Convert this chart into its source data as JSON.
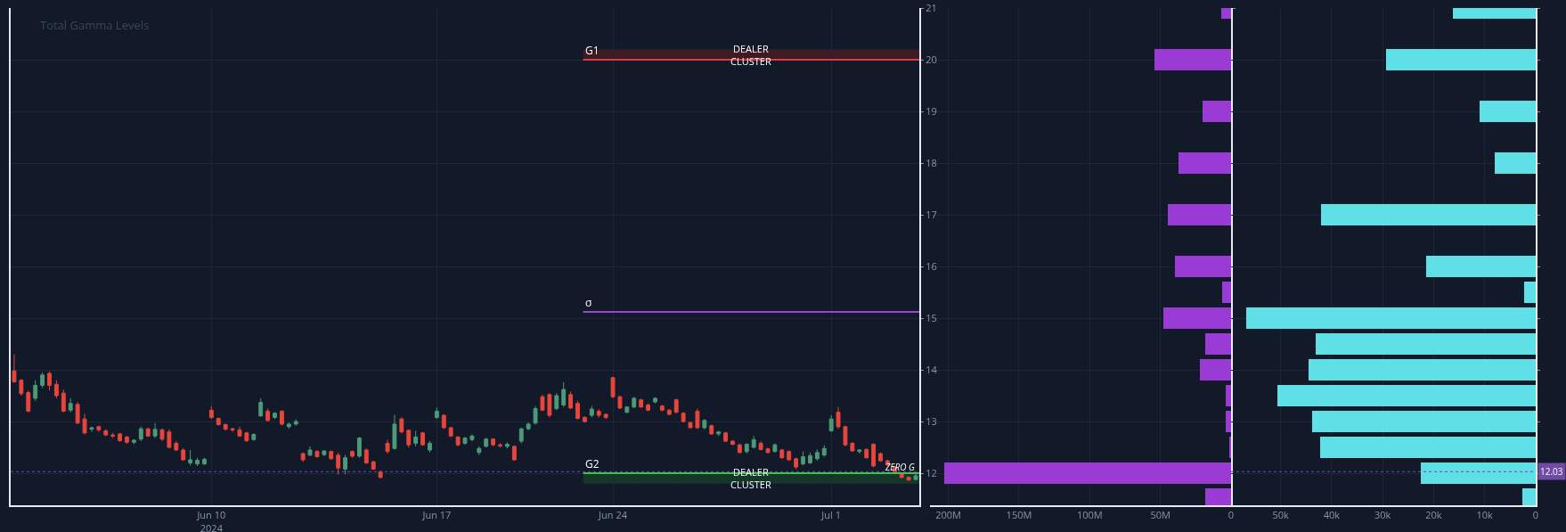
{
  "chart_data": [
    {
      "type": "candlestick",
      "title": "Total Gamma Levels",
      "categories": [
        null,
        null,
        null,
        null,
        null,
        null,
        null,
        null,
        null,
        null,
        null,
        null,
        null,
        null,
        null,
        null,
        null,
        null,
        null,
        null,
        null,
        null,
        null,
        null,
        null,
        null,
        null,
        null,
        "Jun 10\n2024",
        null,
        null,
        null,
        null,
        null,
        null,
        null,
        null,
        null,
        null,
        null,
        null,
        null,
        null,
        null,
        null,
        null,
        null,
        null,
        null,
        null,
        null,
        null,
        null,
        null,
        null,
        null,
        null,
        null,
        null,
        null,
        "Jun 17",
        null,
        null,
        null,
        null,
        null,
        null,
        null,
        null,
        null,
        null,
        null,
        null,
        null,
        null,
        null,
        null,
        null,
        null,
        null,
        null,
        null,
        null,
        null,
        null,
        "Jun 24",
        null,
        null,
        null,
        null,
        null,
        null,
        null,
        null,
        null,
        null,
        null,
        null,
        null,
        null,
        null,
        null,
        null,
        null,
        null,
        null,
        null,
        null,
        null,
        null,
        null,
        null,
        null,
        null,
        null,
        null,
        "Jul 1",
        null,
        null,
        null,
        null,
        null,
        null,
        null,
        null,
        null,
        null,
        null,
        null
      ],
      "ohlc": [
        [
          13.98,
          14.3,
          13.75,
          13.77
        ],
        [
          13.8,
          13.82,
          13.5,
          13.54
        ],
        [
          13.56,
          13.6,
          13.18,
          13.2
        ],
        [
          13.45,
          13.8,
          13.4,
          13.7
        ],
        [
          13.7,
          13.95,
          13.65,
          13.9
        ],
        [
          13.93,
          13.97,
          13.6,
          13.7
        ],
        [
          13.72,
          13.8,
          13.45,
          13.5
        ],
        [
          13.55,
          13.62,
          13.18,
          13.2
        ],
        [
          13.22,
          13.45,
          13.18,
          13.35
        ],
        [
          13.33,
          13.38,
          12.95,
          12.97
        ],
        [
          13.05,
          13.15,
          12.75,
          12.78
        ],
        [
          12.85,
          12.9,
          12.8,
          12.88
        ],
        [
          12.9,
          12.92,
          12.8,
          12.84
        ],
        [
          12.82,
          12.85,
          12.72,
          12.74
        ],
        [
          12.74,
          12.78,
          12.68,
          12.72
        ],
        [
          12.76,
          12.78,
          12.6,
          12.63
        ],
        [
          12.7,
          12.72,
          12.57,
          12.6
        ],
        [
          12.6,
          12.66,
          12.56,
          12.64
        ],
        [
          12.66,
          12.9,
          12.62,
          12.86
        ],
        [
          12.86,
          12.88,
          12.7,
          12.72
        ],
        [
          12.72,
          12.97,
          12.68,
          12.85
        ],
        [
          12.84,
          12.86,
          12.62,
          12.66
        ],
        [
          12.8,
          12.85,
          12.48,
          12.5
        ],
        [
          12.58,
          12.62,
          12.43,
          12.45
        ],
        [
          12.45,
          12.48,
          12.24,
          12.26
        ],
        [
          12.2,
          12.45,
          12.15,
          12.26
        ],
        [
          12.18,
          12.3,
          12.14,
          12.25
        ],
        [
          12.18,
          12.3,
          12.16,
          12.27
        ],
        [
          13.22,
          13.3,
          13.05,
          13.08
        ],
        [
          13.06,
          13.08,
          12.92,
          12.94
        ],
        [
          12.94,
          12.96,
          12.83,
          12.85
        ],
        [
          12.86,
          12.88,
          12.8,
          12.84
        ],
        [
          12.84,
          12.9,
          12.7,
          12.72
        ],
        [
          12.78,
          12.8,
          12.6,
          12.63
        ],
        [
          12.65,
          12.77,
          12.63,
          12.75
        ],
        [
          13.11,
          13.45,
          13.09,
          13.37
        ],
        [
          13.2,
          13.25,
          13.0,
          13.02
        ],
        [
          13.08,
          13.18,
          13.05,
          13.16
        ],
        [
          13.2,
          13.22,
          12.92,
          12.95
        ],
        [
          12.9,
          12.98,
          12.86,
          12.95
        ],
        [
          12.95,
          13.04,
          12.92,
          13.0
        ],
        [
          12.38,
          12.4,
          12.22,
          12.26
        ],
        [
          12.35,
          12.52,
          12.33,
          12.45
        ],
        [
          12.42,
          12.45,
          12.3,
          12.32
        ],
        [
          12.36,
          12.45,
          12.33,
          12.43
        ],
        [
          12.42,
          12.44,
          12.26,
          12.28
        ],
        [
          12.35,
          12.4,
          11.97,
          12.1
        ],
        [
          12.08,
          12.35,
          11.98,
          12.3
        ],
        [
          12.42,
          12.44,
          12.3,
          12.33
        ],
        [
          12.33,
          12.7,
          12.3,
          12.68
        ],
        [
          12.45,
          12.48,
          12.18,
          12.2
        ],
        [
          12.22,
          12.24,
          12.06,
          12.08
        ],
        [
          12.03,
          12.05,
          11.9,
          11.92
        ],
        [
          12.58,
          12.65,
          12.38,
          12.42
        ],
        [
          12.48,
          13.13,
          12.46,
          12.95
        ],
        [
          13.05,
          13.08,
          12.77,
          12.8
        ],
        [
          12.83,
          12.85,
          12.5,
          12.55
        ],
        [
          12.58,
          12.82,
          12.52,
          12.7
        ],
        [
          12.78,
          12.8,
          12.53,
          12.55
        ],
        [
          12.45,
          12.62,
          12.4,
          12.58
        ],
        [
          13.08,
          13.27,
          13.05,
          13.2
        ],
        [
          13.12,
          13.14,
          12.86,
          12.88
        ],
        [
          12.88,
          12.9,
          12.7,
          12.72
        ],
        [
          12.7,
          12.72,
          12.52,
          12.55
        ],
        [
          12.58,
          12.7,
          12.55,
          12.68
        ],
        [
          12.65,
          12.75,
          12.62,
          12.72
        ],
        [
          12.4,
          12.52,
          12.35,
          12.48
        ],
        [
          12.52,
          12.68,
          12.5,
          12.66
        ],
        [
          12.66,
          12.68,
          12.52,
          12.55
        ],
        [
          12.55,
          12.58,
          12.5,
          12.53
        ],
        [
          12.52,
          12.6,
          12.48,
          12.56
        ],
        [
          12.52,
          12.54,
          12.24,
          12.26
        ],
        [
          12.62,
          12.88,
          12.58,
          12.86
        ],
        [
          12.86,
          12.98,
          12.83,
          12.95
        ],
        [
          12.97,
          13.3,
          12.94,
          13.25
        ],
        [
          13.48,
          13.52,
          13.2,
          13.22
        ],
        [
          13.52,
          13.55,
          13.08,
          13.12
        ],
        [
          13.25,
          13.55,
          13.22,
          13.5
        ],
        [
          13.32,
          13.76,
          13.28,
          13.62
        ],
        [
          13.52,
          13.58,
          13.25,
          13.26
        ],
        [
          13.35,
          13.4,
          13.04,
          13.06
        ],
        [
          13.08,
          13.1,
          12.98,
          13.0
        ],
        [
          13.12,
          13.3,
          13.08,
          13.24
        ],
        [
          13.2,
          13.24,
          13.08,
          13.12
        ],
        [
          13.14,
          13.16,
          13.05,
          13.08
        ],
        [
          13.85,
          13.86,
          13.45,
          13.48
        ],
        [
          13.48,
          13.5,
          13.24,
          13.26
        ],
        [
          13.18,
          13.3,
          13.15,
          13.28
        ],
        [
          13.28,
          13.48,
          13.26,
          13.45
        ],
        [
          13.42,
          13.44,
          13.27,
          13.28
        ],
        [
          13.32,
          13.35,
          13.2,
          13.22
        ],
        [
          13.38,
          13.47,
          13.35,
          13.45
        ],
        [
          13.3,
          13.32,
          13.2,
          13.22
        ],
        [
          13.22,
          13.24,
          13.12,
          13.14
        ],
        [
          13.42,
          13.44,
          13.16,
          13.18
        ],
        [
          13.16,
          13.18,
          12.98,
          13.0
        ],
        [
          12.98,
          13.0,
          12.87,
          12.88
        ],
        [
          13.2,
          13.25,
          12.86,
          12.88
        ],
        [
          12.88,
          13.05,
          12.85,
          13.02
        ],
        [
          12.92,
          12.94,
          12.74,
          12.76
        ],
        [
          12.76,
          12.82,
          12.72,
          12.8
        ],
        [
          12.78,
          12.8,
          12.6,
          12.62
        ],
        [
          12.62,
          12.64,
          12.54,
          12.56
        ],
        [
          12.55,
          12.57,
          12.38,
          12.4
        ],
        [
          12.42,
          12.58,
          12.38,
          12.56
        ],
        [
          12.5,
          12.72,
          12.48,
          12.65
        ],
        [
          12.58,
          12.62,
          12.44,
          12.46
        ],
        [
          12.47,
          12.49,
          12.38,
          12.4
        ],
        [
          12.42,
          12.58,
          12.4,
          12.55
        ],
        [
          12.45,
          12.47,
          12.28,
          12.3
        ],
        [
          12.42,
          12.44,
          12.24,
          12.26
        ],
        [
          12.28,
          12.3,
          12.08,
          12.12
        ],
        [
          12.18,
          12.42,
          12.15,
          12.32
        ],
        [
          12.2,
          12.4,
          12.18,
          12.34
        ],
        [
          12.28,
          12.46,
          12.24,
          12.4
        ],
        [
          12.35,
          12.54,
          12.32,
          12.48
        ],
        [
          12.82,
          13.12,
          12.8,
          13.05
        ],
        [
          13.18,
          13.28,
          12.86,
          12.9
        ],
        [
          12.9,
          12.92,
          12.52,
          12.55
        ],
        [
          12.58,
          12.6,
          12.42,
          12.43
        ],
        [
          12.42,
          12.47,
          12.38,
          12.45
        ],
        [
          12.46,
          12.48,
          12.28,
          12.3
        ],
        [
          12.56,
          12.58,
          12.12,
          12.14
        ],
        [
          12.38,
          12.4,
          12.22,
          12.24
        ],
        [
          12.24,
          12.26,
          12.14,
          12.16
        ],
        [
          12.12,
          12.14,
          11.98,
          12.0
        ],
        [
          11.99,
          12.01,
          11.9,
          11.92
        ],
        [
          11.92,
          11.94,
          11.85,
          11.87
        ],
        [
          11.88,
          11.98,
          11.86,
          11.95
        ]
      ],
      "ylim": [
        11.38,
        21
      ],
      "yticks": [
        12,
        13,
        14,
        15,
        16,
        17,
        18,
        19,
        20,
        21
      ],
      "grid": true,
      "ref_lines": [
        {
          "axis": "y",
          "value": 20,
          "label": "G1",
          "color": "#e0393e",
          "line_style": "solid"
        },
        {
          "axis": "y",
          "value": 15.12,
          "label": "σ",
          "color": "#9a45d0",
          "line_style": "solid"
        },
        {
          "axis": "y",
          "value": 12,
          "label": "G2",
          "color": "#3fbf4f",
          "line_style": "solid"
        },
        {
          "axis": "y",
          "value": 12.03,
          "color": "#6f4aa8",
          "line_style": "dotted"
        }
      ],
      "bands": [
        {
          "axis": "y",
          "from": 20,
          "to": 20.2,
          "label": "DEALER\nCLUSTER",
          "color": "#4a1a24"
        },
        {
          "axis": "y",
          "from": 11.8,
          "to": 12,
          "label": "DEALER\nCLUSTER",
          "color": "#173d28"
        }
      ],
      "annotations": [
        {
          "text": "ZERO G",
          "y": 12.12
        }
      ]
    },
    {
      "type": "bar",
      "orientation": "horizontal",
      "x": [
        21,
        20,
        19,
        18,
        17,
        16,
        15.5,
        15,
        14.5,
        14,
        13.5,
        13,
        12.5,
        12,
        11.5
      ],
      "series": [
        {
          "color": "#9b3bd6",
          "values": [
            7,
            54,
            20,
            37,
            45,
            40,
            6.6,
            48,
            18,
            22,
            4,
            4,
            1.4,
            203,
            18
          ]
        }
      ],
      "xlim": [
        213,
        0
      ],
      "xticks": [
        {
          "value": 200,
          "label": "200M"
        },
        {
          "value": 150,
          "label": "150M"
        },
        {
          "value": 100,
          "label": "100M"
        },
        {
          "value": 50,
          "label": "50M"
        },
        0
      ],
      "ylim": [
        11.38,
        21
      ],
      "yticks": [
        12,
        13,
        14,
        15,
        16,
        17,
        18,
        19,
        20,
        21
      ],
      "grid": true,
      "tick_labels": "x"
    },
    {
      "type": "bar",
      "orientation": "horizontal",
      "x": [
        21,
        20,
        19,
        18,
        17,
        16,
        15.5,
        15,
        14.5,
        14,
        13.5,
        13,
        12.5,
        12,
        11.5
      ],
      "series": [
        {
          "color": "#5ee0e6",
          "values": [
            16.2,
            29.3,
            11,
            8,
            42,
            21.4,
            2.2,
            56.7,
            43.1,
            44.5,
            50.7,
            43.9,
            42.2,
            22.6,
            2.6
          ]
        }
      ],
      "xlim": [
        59.7,
        0
      ],
      "xticks": [
        {
          "value": 50,
          "label": "50k"
        },
        {
          "value": 40,
          "label": "40k"
        },
        {
          "value": 30,
          "label": "30k"
        },
        {
          "value": 20,
          "label": "20k"
        },
        {
          "value": 10,
          "label": "10k"
        },
        0
      ],
      "ylim": [
        11.38,
        21
      ],
      "yticks": [
        12,
        13,
        14,
        15,
        16,
        17,
        18,
        19,
        20,
        21
      ],
      "grid": true,
      "tick_labels": "x",
      "ref_lines": [
        {
          "axis": "y",
          "value": 12.03,
          "label": "12.03",
          "color": "#6f4aa8",
          "line_style": "dotted"
        }
      ]
    }
  ]
}
